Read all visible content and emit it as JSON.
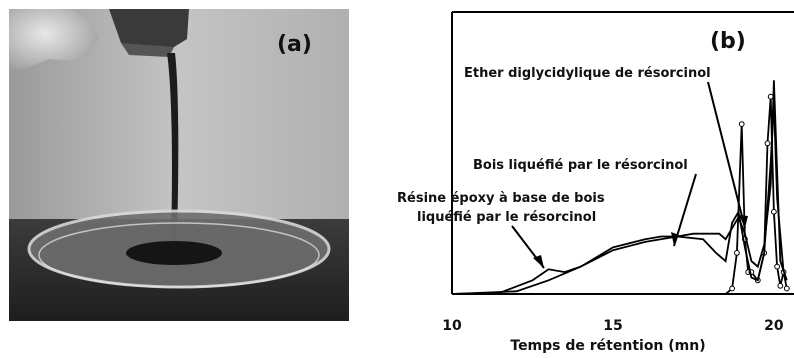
{
  "panel_a": {
    "label": "(a)"
  },
  "chart_data": {
    "type": "line",
    "panel_label": "(b)",
    "title": "",
    "xlabel": "Temps de rétention (mn)",
    "ylabel": "",
    "xlim": [
      10,
      20.5
    ],
    "ylim": [
      0,
      1
    ],
    "xticks": [
      10,
      15,
      20
    ],
    "grid": false,
    "annotations": [
      {
        "text": "Ether diglycidylique de résorcinol",
        "target_series": "Ether diglycidylique de résorcinol"
      },
      {
        "text": "Bois liquéfié par le résorcinol",
        "target_series": "Bois liquéfié par le résorcinol"
      },
      {
        "text": "Résine époxy à base de bois",
        "text2": "liquéfié par le résorcinol",
        "target_series": "Résine époxy à base de bois liquéfié par le résorcinol"
      }
    ],
    "series": [
      {
        "name": "Ether diglycidylique de résorcinol",
        "style": "solid-with-circle-markers",
        "x": [
          10,
          18.5,
          18.7,
          18.85,
          19.0,
          19.1,
          19.2,
          19.3,
          19.5,
          19.7,
          19.8,
          19.9,
          20.0,
          20.1,
          20.2,
          20.3,
          20.4
        ],
        "y": [
          0,
          0,
          0.02,
          0.15,
          0.62,
          0.2,
          0.08,
          0.08,
          0.05,
          0.15,
          0.55,
          0.72,
          0.3,
          0.1,
          0.03,
          0.08,
          0.02
        ]
      },
      {
        "name": "Bois liquéfié par le résorcinol",
        "style": "solid",
        "x": [
          10,
          12.0,
          13.0,
          14.0,
          15.0,
          16.0,
          16.5,
          17.0,
          17.5,
          18.0,
          18.3,
          18.5,
          18.7,
          18.9,
          19.1,
          19.3,
          19.5,
          19.7,
          19.9,
          20.0,
          20.1,
          20.2,
          20.4
        ],
        "y": [
          0,
          0.01,
          0.05,
          0.1,
          0.17,
          0.2,
          0.21,
          0.21,
          0.22,
          0.22,
          0.22,
          0.2,
          0.24,
          0.28,
          0.22,
          0.12,
          0.1,
          0.18,
          0.4,
          0.78,
          0.45,
          0.12,
          0.05
        ]
      },
      {
        "name": "Résine époxy à base de bois liquéfié par le résorcinol",
        "style": "solid",
        "x": [
          10,
          11.5,
          12.5,
          13.0,
          13.5,
          14.0,
          15.0,
          16.0,
          17.0,
          17.8,
          18.2,
          18.5,
          18.7,
          18.9,
          19.1,
          19.3,
          19.5,
          19.7,
          19.9,
          20.0,
          20.1,
          20.3
        ],
        "y": [
          0,
          0.005,
          0.05,
          0.09,
          0.08,
          0.1,
          0.16,
          0.19,
          0.21,
          0.2,
          0.15,
          0.12,
          0.26,
          0.3,
          0.17,
          0.06,
          0.05,
          0.15,
          0.48,
          0.7,
          0.35,
          0.08
        ]
      }
    ]
  }
}
